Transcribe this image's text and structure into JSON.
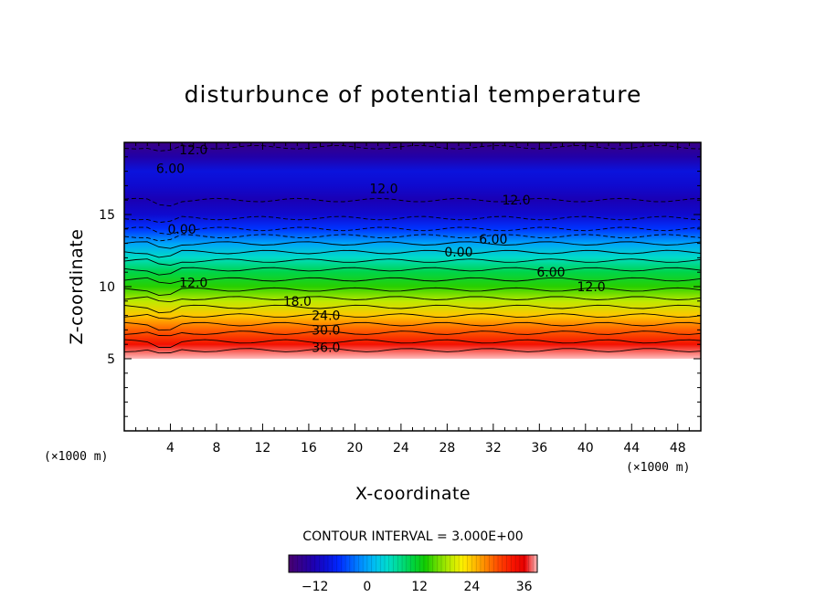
{
  "chart_data": {
    "type": "heatmap",
    "title": "disturbunce of potential temperature",
    "xlabel": "X-coordinate",
    "ylabel": "Z-coordinate",
    "x_unit": "(×1000 m)",
    "z_unit": "(×1000 m)",
    "xlim": [
      0,
      50
    ],
    "ylim": [
      0,
      20
    ],
    "x_ticks": [
      4,
      8,
      12,
      16,
      20,
      24,
      28,
      32,
      36,
      40,
      44,
      48
    ],
    "y_ticks": [
      5,
      10,
      15
    ],
    "field_lower_bound_z": 5,
    "contour_interval_text": "CONTOUR INTERVAL = 3.000E+00",
    "colorbar": {
      "range": [
        -18,
        39
      ],
      "ticks": [
        -12,
        0,
        12,
        24,
        36
      ],
      "tick_labels": [
        "−12",
        "0",
        "12",
        "24",
        "36"
      ]
    },
    "approx_profile": {
      "z": [
        5,
        6,
        7,
        8,
        9,
        10,
        11,
        12,
        13,
        14,
        15,
        16,
        17,
        18,
        19,
        20
      ],
      "value": [
        39,
        34,
        29,
        24,
        19,
        14,
        10,
        5,
        0,
        -6,
        -10,
        -12,
        -10,
        -9,
        -13,
        -16
      ]
    },
    "contour_labels": [
      {
        "text": "12.0",
        "x": 6,
        "z": 19.5
      },
      {
        "text": "6.00",
        "x": 4,
        "z": 18.2
      },
      {
        "text": "12.0",
        "x": 22.5,
        "z": 16.8
      },
      {
        "text": "12.0",
        "x": 34,
        "z": 16.0
      },
      {
        "text": "6.00",
        "x": 32,
        "z": 13.3
      },
      {
        "text": "0.00",
        "x": 29,
        "z": 12.4
      },
      {
        "text": "6.00",
        "x": 37,
        "z": 11.0
      },
      {
        "text": "12.0",
        "x": 40.5,
        "z": 10.0
      },
      {
        "text": "0.00",
        "x": 5,
        "z": 14.0
      },
      {
        "text": "12.0",
        "x": 6,
        "z": 10.3
      },
      {
        "text": "18.0",
        "x": 15,
        "z": 9.0
      },
      {
        "text": "24.0",
        "x": 17.5,
        "z": 8.0
      },
      {
        "text": "30.0",
        "x": 17.5,
        "z": 7.0
      },
      {
        "text": "36.0",
        "x": 17.5,
        "z": 5.8
      }
    ]
  }
}
